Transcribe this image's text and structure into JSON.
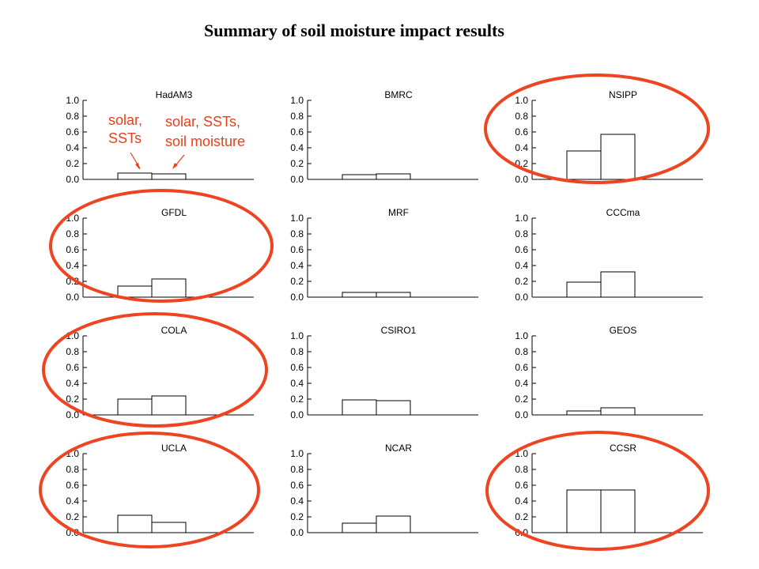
{
  "title": "Summary of soil moisture impact results",
  "colors": {
    "highlight": "#ee4422",
    "annotation": "#e8401c",
    "bar_fill": "#ffffff",
    "bar_stroke": "#000000"
  },
  "annotations": {
    "left_lines": [
      "solar,",
      "SSTs"
    ],
    "right_lines": [
      "solar, SSTs,",
      "soil moisture"
    ]
  },
  "chart_data": [
    {
      "type": "bar",
      "title": "HadAM3",
      "categories": [
        "solar, SSTs",
        "solar, SSTs, soil moisture"
      ],
      "values": [
        0.08,
        0.07
      ],
      "ylim": [
        0,
        1.0
      ],
      "yticks": [
        "0.0",
        "0.2",
        "0.4",
        "0.6",
        "0.8",
        "1.0"
      ],
      "highlighted": false
    },
    {
      "type": "bar",
      "title": "BMRC",
      "categories": [
        "solar, SSTs",
        "solar, SSTs, soil moisture"
      ],
      "values": [
        0.06,
        0.07
      ],
      "ylim": [
        0,
        1.0
      ],
      "yticks": [
        "0.0",
        "0.2",
        "0.4",
        "0.6",
        "0.8",
        "1.0"
      ],
      "highlighted": false
    },
    {
      "type": "bar",
      "title": "NSIPP",
      "categories": [
        "solar, SSTs",
        "solar, SSTs, soil moisture"
      ],
      "values": [
        0.36,
        0.57
      ],
      "ylim": [
        0,
        1.0
      ],
      "yticks": [
        "0.0",
        "0.2",
        "0.4",
        "0.6",
        "0.8",
        "1.0"
      ],
      "highlighted": true
    },
    {
      "type": "bar",
      "title": "GFDL",
      "categories": [
        "solar, SSTs",
        "solar, SSTs, soil moisture"
      ],
      "values": [
        0.14,
        0.23
      ],
      "ylim": [
        0,
        1.0
      ],
      "yticks": [
        "0.0",
        "0.2",
        "0.4",
        "0.6",
        "0.8",
        "1.0"
      ],
      "highlighted": true
    },
    {
      "type": "bar",
      "title": "MRF",
      "categories": [
        "solar, SSTs",
        "solar, SSTs, soil moisture"
      ],
      "values": [
        0.06,
        0.06
      ],
      "ylim": [
        0,
        1.0
      ],
      "yticks": [
        "0.0",
        "0.2",
        "0.4",
        "0.6",
        "0.8",
        "1.0"
      ],
      "highlighted": false
    },
    {
      "type": "bar",
      "title": "CCCma",
      "categories": [
        "solar, SSTs",
        "solar, SSTs, soil moisture"
      ],
      "values": [
        0.19,
        0.32
      ],
      "ylim": [
        0,
        1.0
      ],
      "yticks": [
        "0.0",
        "0.2",
        "0.4",
        "0.6",
        "0.8",
        "1.0"
      ],
      "highlighted": false
    },
    {
      "type": "bar",
      "title": "COLA",
      "categories": [
        "solar, SSTs",
        "solar, SSTs, soil moisture"
      ],
      "values": [
        0.2,
        0.24
      ],
      "ylim": [
        0,
        1.0
      ],
      "yticks": [
        "0.0",
        "0.2",
        "0.4",
        "0.6",
        "0.8",
        "1.0"
      ],
      "highlighted": true
    },
    {
      "type": "bar",
      "title": "CSIRO1",
      "categories": [
        "solar, SSTs",
        "solar, SSTs, soil moisture"
      ],
      "values": [
        0.19,
        0.18
      ],
      "ylim": [
        0,
        1.0
      ],
      "yticks": [
        "0.0",
        "0.2",
        "0.4",
        "0.6",
        "0.8",
        "1.0"
      ],
      "highlighted": false
    },
    {
      "type": "bar",
      "title": "GEOS",
      "categories": [
        "solar, SSTs",
        "solar, SSTs, soil moisture"
      ],
      "values": [
        0.05,
        0.09
      ],
      "ylim": [
        0,
        1.0
      ],
      "yticks": [
        "0.0",
        "0.2",
        "0.4",
        "0.6",
        "0.8",
        "1.0"
      ],
      "highlighted": false
    },
    {
      "type": "bar",
      "title": "UCLA",
      "categories": [
        "solar, SSTs",
        "solar, SSTs, soil moisture"
      ],
      "values": [
        0.22,
        0.13
      ],
      "ylim": [
        0,
        1.0
      ],
      "yticks": [
        "0.0",
        "0.2",
        "0.4",
        "0.6",
        "0.8",
        "1.0"
      ],
      "highlighted": true
    },
    {
      "type": "bar",
      "title": "NCAR",
      "categories": [
        "solar, SSTs",
        "solar, SSTs, soil moisture"
      ],
      "values": [
        0.12,
        0.21
      ],
      "ylim": [
        0,
        1.0
      ],
      "yticks": [
        "0.0",
        "0.2",
        "0.4",
        "0.6",
        "0.8",
        "1.0"
      ],
      "highlighted": false
    },
    {
      "type": "bar",
      "title": "CCSR",
      "categories": [
        "solar, SSTs",
        "solar, SSTs, soil moisture"
      ],
      "values": [
        0.54,
        0.54
      ],
      "ylim": [
        0,
        1.0
      ],
      "yticks": [
        "0.0",
        "0.2",
        "0.4",
        "0.6",
        "0.8",
        "1.0"
      ],
      "highlighted": true
    }
  ]
}
